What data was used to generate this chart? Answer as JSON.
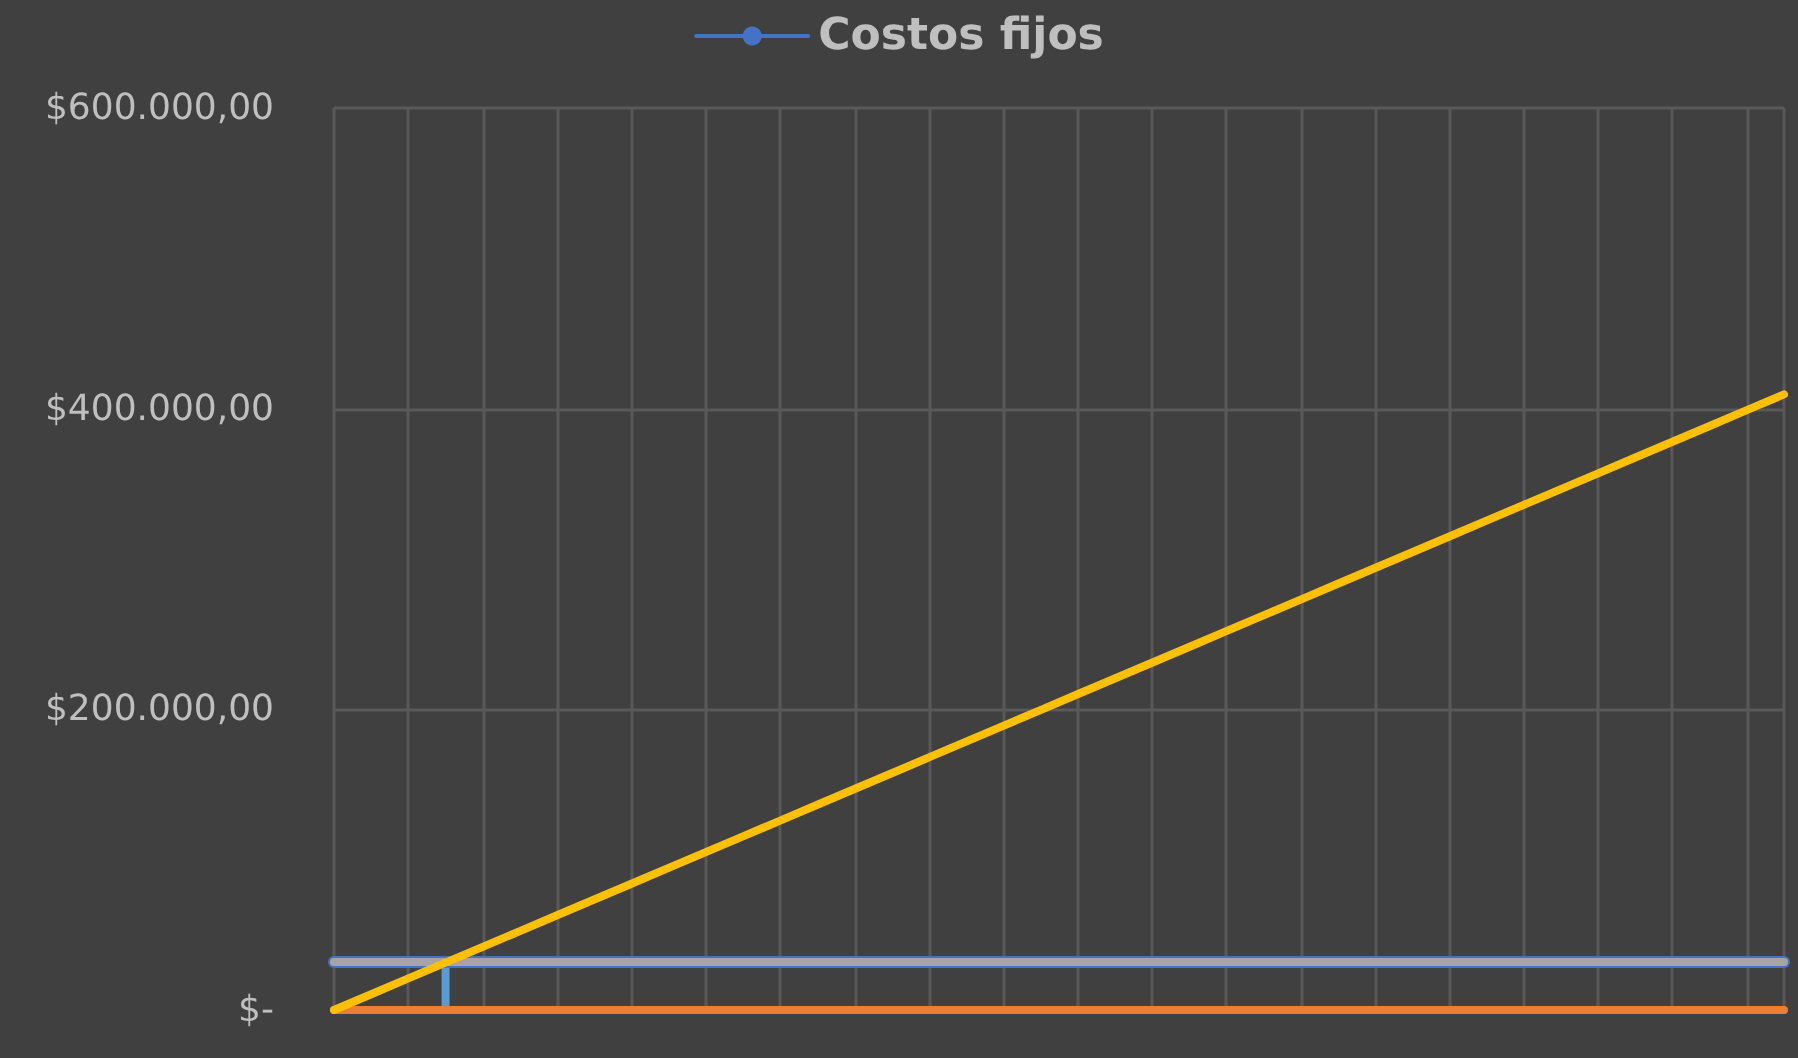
{
  "chart_data": {
    "type": "line",
    "categories": [
      null,
      null,
      null,
      null,
      null,
      null,
      null,
      null,
      null,
      null,
      null,
      null,
      null,
      null,
      null,
      null,
      null,
      null,
      null,
      null,
      null,
      null,
      null,
      null,
      null,
      null,
      null,
      null,
      null,
      null,
      null,
      null,
      null,
      null,
      null,
      null,
      null,
      null,
      null,
      null
    ],
    "series": [
      {
        "name": "Costos fijos",
        "color": "#4472c4",
        "values": [
          32000,
          32000,
          32000,
          32000,
          32000,
          32000,
          32000,
          32000,
          32000,
          32000,
          32000,
          32000,
          32000,
          32000,
          32000,
          32000,
          32000,
          32000,
          32000,
          32000,
          32000,
          32000,
          32000,
          32000,
          32000,
          32000,
          32000,
          32000,
          32000,
          32000,
          32000,
          32000,
          32000,
          32000,
          32000,
          32000,
          32000,
          32000,
          32000,
          32000
        ]
      },
      {
        "color": "#a5a5a5",
        "values": [
          32000,
          32000,
          32000,
          32000,
          32000,
          32000,
          32000,
          32000,
          32000,
          32000,
          32000,
          32000,
          32000,
          32000,
          32000,
          32000,
          32000,
          32000,
          32000,
          32000,
          32000,
          32000,
          32000,
          32000,
          32000,
          32000,
          32000,
          32000,
          32000,
          32000,
          32000,
          32000,
          32000,
          32000,
          32000,
          32000,
          32000,
          32000,
          32000,
          32000
        ]
      },
      {
        "color": "#ed7d31",
        "values": [
          0,
          0,
          0,
          0,
          0,
          0,
          0,
          0,
          0,
          0,
          0,
          0,
          0,
          0,
          0,
          0,
          0,
          0,
          0,
          0,
          0,
          0,
          0,
          0,
          0,
          0,
          0,
          0,
          0,
          0,
          0,
          0,
          0,
          0,
          0,
          0,
          0,
          0,
          0,
          0
        ]
      },
      {
        "color": "#ffc000",
        "values": [
          0,
          10500,
          21000,
          31500,
          42000,
          52500,
          63000,
          73500,
          84000,
          94500,
          105000,
          115500,
          126000,
          136500,
          147000,
          157500,
          168000,
          178500,
          189000,
          199500,
          210000,
          220500,
          231000,
          241500,
          252000,
          262500,
          273000,
          283500,
          294000,
          304500,
          315000,
          325500,
          336000,
          346500,
          357000,
          367500,
          378000,
          388500,
          399000,
          409500
        ]
      },
      {
        "type": "bar",
        "color": "#5b9bd5",
        "values": [
          null,
          null,
          null,
          32000,
          null,
          null,
          null,
          null,
          null,
          null,
          null,
          null,
          null,
          null,
          null,
          null,
          null,
          null,
          null,
          null,
          null,
          null,
          null,
          null,
          null,
          null,
          null,
          null,
          null,
          null,
          null,
          null,
          null,
          null,
          null,
          null,
          null,
          null,
          null,
          null
        ]
      }
    ],
    "ylim": [
      0,
      600000
    ],
    "yticks": [
      {
        "value": 0,
        "label": "$-"
      },
      {
        "value": 200000,
        "label": "$200.000,00"
      },
      {
        "value": 400000,
        "label": "$400.000,00"
      },
      {
        "value": 600000,
        "label": "$600.000,00"
      }
    ],
    "grid": true,
    "legend": "top",
    "marker": "none",
    "line_style": "solid"
  }
}
